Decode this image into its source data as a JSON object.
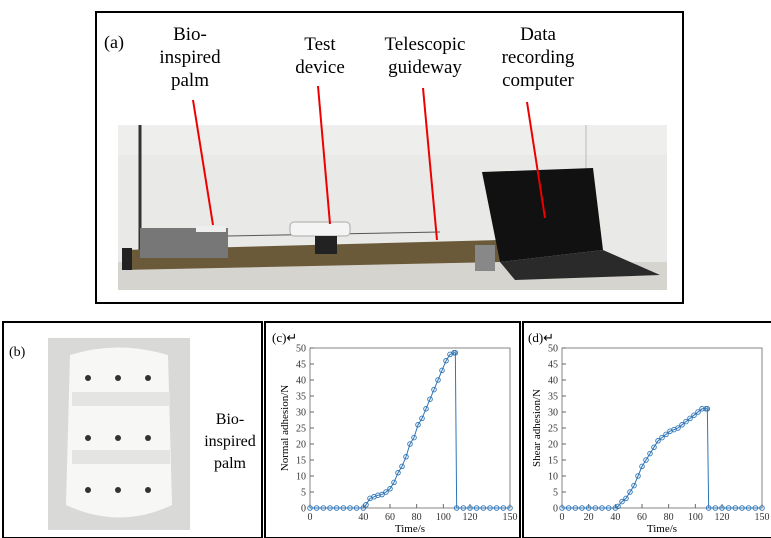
{
  "panel_a": {
    "label": "(a)",
    "annotations": [
      {
        "lines": [
          "Bio-",
          "inspired",
          "palm"
        ]
      },
      {
        "lines": [
          "Test",
          "device"
        ]
      },
      {
        "lines": [
          "Telescopic",
          "guideway"
        ]
      },
      {
        "lines": [
          "Data",
          "recording",
          "computer"
        ]
      }
    ]
  },
  "panel_b": {
    "label": "(b)",
    "annotation": {
      "lines": [
        "Bio-",
        "inspired",
        "palm"
      ]
    }
  },
  "chart_data": [
    {
      "type": "line",
      "title": "(c)↵",
      "x_label": "Time/s",
      "y_label": "Normal adhesion/N",
      "xlim": [
        0,
        150
      ],
      "xticks": [
        0,
        40,
        60,
        80,
        100,
        120,
        150
      ],
      "ylim": [
        0,
        50
      ],
      "yticks": [
        0,
        5,
        10,
        15,
        20,
        25,
        30,
        35,
        40,
        45,
        50
      ],
      "series": [
        {
          "color": "#2e75b6",
          "x": [
            0,
            5,
            10,
            15,
            20,
            25,
            30,
            35,
            40,
            42,
            45,
            48,
            51,
            54,
            57,
            60,
            63,
            66,
            69,
            72,
            75,
            78,
            81,
            84,
            87,
            90,
            93,
            96,
            99,
            102,
            105,
            108,
            109,
            110,
            115,
            120,
            125,
            130,
            135,
            140,
            145,
            150
          ],
          "values": [
            0,
            0,
            0,
            0,
            0,
            0,
            0,
            0,
            0,
            1,
            3,
            3.5,
            4,
            4.2,
            5,
            6,
            8,
            11,
            13,
            16,
            20,
            22,
            26,
            28,
            31,
            34,
            37,
            40,
            43,
            46,
            48,
            48.5,
            48.5,
            0,
            0,
            0,
            0,
            0,
            0,
            0,
            0,
            0
          ]
        }
      ]
    },
    {
      "type": "line",
      "title": "(d)↵",
      "x_label": "Time/s",
      "y_label": "Shear adhesion/N",
      "xlim": [
        0,
        150
      ],
      "xticks": [
        0,
        20,
        40,
        60,
        80,
        100,
        120,
        150
      ],
      "ylim": [
        0,
        50
      ],
      "yticks": [
        0,
        5,
        10,
        15,
        20,
        25,
        30,
        35,
        40,
        45,
        50
      ],
      "series": [
        {
          "color": "#2e75b6",
          "x": [
            0,
            5,
            10,
            15,
            20,
            25,
            30,
            35,
            40,
            42,
            45,
            48,
            51,
            54,
            57,
            60,
            63,
            66,
            69,
            72,
            75,
            78,
            81,
            84,
            87,
            90,
            93,
            96,
            99,
            102,
            105,
            108,
            109,
            110,
            115,
            120,
            125,
            130,
            135,
            140,
            145,
            150
          ],
          "values": [
            0,
            0,
            0,
            0,
            0,
            0,
            0,
            0,
            0,
            0.5,
            2,
            3,
            5,
            7,
            10,
            13,
            15,
            17,
            19,
            21,
            22,
            23,
            24,
            24.5,
            25,
            26,
            27,
            28,
            29,
            30,
            31,
            31,
            31,
            0,
            0,
            0,
            0,
            0,
            0,
            0,
            0,
            0
          ]
        }
      ]
    }
  ]
}
